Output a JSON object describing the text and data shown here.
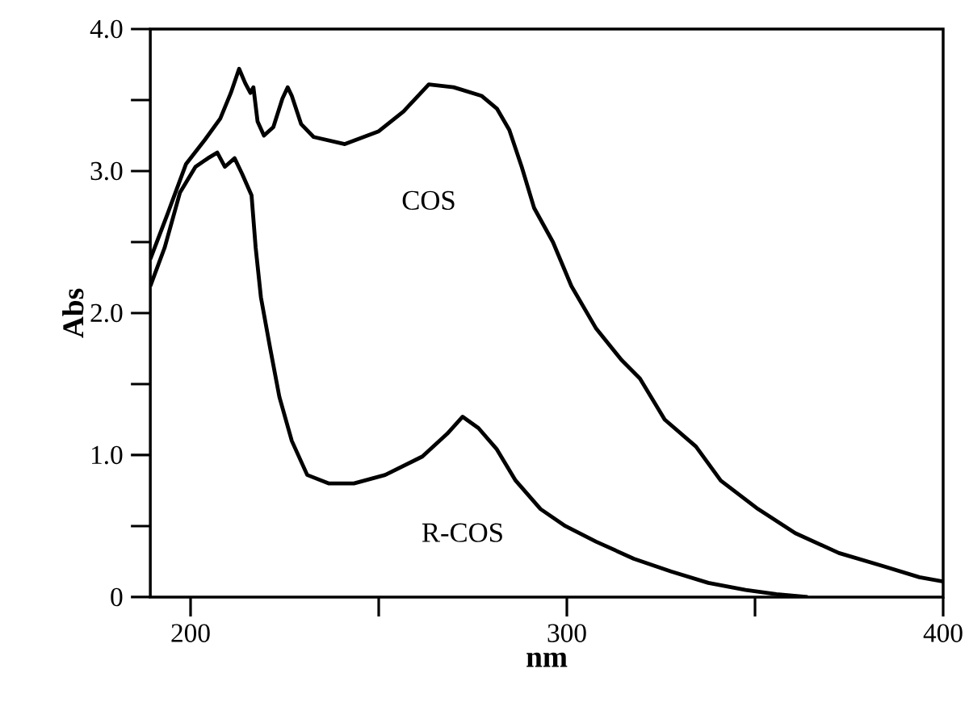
{
  "chart_data": {
    "type": "line",
    "xlabel": "nm",
    "ylabel": "Abs",
    "xlim": [
      189.3,
      400
    ],
    "ylim": [
      0,
      4
    ],
    "xticks": [
      200,
      {
        "value": 250,
        "label": null
      },
      300,
      {
        "value": 350,
        "label": null
      },
      400
    ],
    "yticks": [
      0,
      {
        "value": 0.5,
        "label": null
      },
      {
        "value": 1,
        "label": "1.0"
      },
      {
        "value": 1.5,
        "label": null
      },
      {
        "value": 2,
        "label": "2.0"
      },
      {
        "value": 2.5,
        "label": null
      },
      {
        "value": 3,
        "label": "3.0"
      },
      {
        "value": 3.5,
        "label": null
      },
      {
        "value": 4,
        "label": "4.0"
      }
    ],
    "grid": false,
    "legend": false,
    "marker": "none",
    "line_style": "solid",
    "series": [
      {
        "name": "COS",
        "color": "#000000",
        "x": [
          189.3,
          193.9,
          198.8,
          203.8,
          207.9,
          210.7,
          212.9,
          214.5,
          215.9,
          216.7,
          217.8,
          219.5,
          222.0,
          224.4,
          225.8,
          226.9,
          229.4,
          232.7,
          241.0,
          250.0,
          256.6,
          263.3,
          269.9,
          277.3,
          281.4,
          284.7,
          288.0,
          291.3,
          296.3,
          301.2,
          307.8,
          314.5,
          319.4,
          326.0,
          334.3,
          340.9,
          350.8,
          360.7,
          372.3,
          383.8,
          393.7,
          400
        ],
        "values": [
          2.38,
          2.7,
          3.05,
          3.22,
          3.37,
          3.55,
          3.72,
          3.62,
          3.55,
          3.59,
          3.35,
          3.25,
          3.31,
          3.51,
          3.59,
          3.53,
          3.33,
          3.24,
          3.19,
          3.28,
          3.42,
          3.61,
          3.59,
          3.53,
          3.44,
          3.29,
          3.03,
          2.74,
          2.5,
          2.19,
          1.89,
          1.67,
          1.54,
          1.25,
          1.06,
          0.82,
          0.62,
          0.45,
          0.31,
          0.22,
          0.14,
          0.11
        ]
      },
      {
        "name": "R-COS",
        "color": "#000000",
        "x": [
          189.3,
          193.1,
          197.2,
          201.3,
          204.6,
          207.1,
          209.1,
          211.7,
          213.7,
          216.2,
          217.3,
          218.7,
          221.1,
          223.6,
          226.9,
          231.0,
          236.8,
          243.4,
          251.7,
          261.6,
          268.2,
          272.3,
          276.5,
          281.4,
          286.4,
          293.0,
          299.6,
          307.8,
          317.8,
          327.7,
          337.6,
          347.5,
          355.7,
          364.0
        ],
        "values": [
          2.19,
          2.46,
          2.85,
          3.03,
          3.09,
          3.13,
          3.03,
          3.09,
          2.98,
          2.83,
          2.46,
          2.11,
          1.76,
          1.41,
          1.1,
          0.86,
          0.8,
          0.8,
          0.86,
          0.99,
          1.15,
          1.27,
          1.19,
          1.04,
          0.82,
          0.62,
          0.5,
          0.39,
          0.27,
          0.18,
          0.1,
          0.05,
          0.02,
          0.0
        ]
      }
    ]
  }
}
